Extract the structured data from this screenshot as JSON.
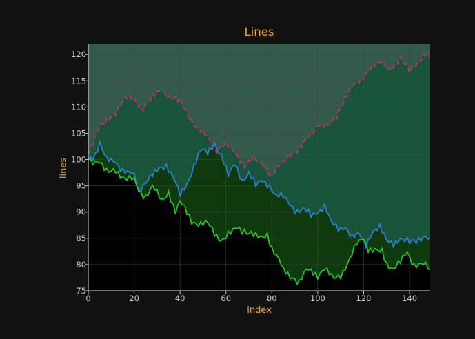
{
  "chart_data": {
    "type": "area",
    "title": "Lines",
    "xlabel": "Index",
    "ylabel": "lines",
    "xlim": [
      0,
      149
    ],
    "ylim": [
      75,
      122
    ],
    "xticks": [
      "0",
      "20",
      "40",
      "60",
      "80",
      "100",
      "120",
      "140"
    ],
    "yticks": [
      "75",
      "80",
      "85",
      "90",
      "95",
      "100",
      "105",
      "110",
      "115",
      "120"
    ],
    "grid": true,
    "legend": "none",
    "colors": {
      "background": "#111111",
      "plot_background": "#000000",
      "text": "#f0a030",
      "tick_text": "#cccccc",
      "grid": "#444444",
      "series_1": "#2dbf2d",
      "series_2": "#2e7fd0",
      "series_3": "#c62d72"
    },
    "series": [
      {
        "style": "solid",
        "color": "#2dbf2d",
        "anchors": [
          [
            0,
            100
          ],
          [
            5,
            99.5
          ],
          [
            8,
            97.5
          ],
          [
            12,
            98
          ],
          [
            15,
            96.5
          ],
          [
            20,
            96
          ],
          [
            22,
            94
          ],
          [
            25,
            93
          ],
          [
            28,
            95
          ],
          [
            32,
            92
          ],
          [
            35,
            94
          ],
          [
            38,
            90
          ],
          [
            40,
            92
          ],
          [
            43,
            90
          ],
          [
            45,
            88.5
          ],
          [
            48,
            87.5
          ],
          [
            52,
            88
          ],
          [
            55,
            86
          ],
          [
            58,
            84.5
          ],
          [
            62,
            86
          ],
          [
            65,
            87
          ],
          [
            68,
            86.5
          ],
          [
            72,
            85.5
          ],
          [
            75,
            85
          ],
          [
            78,
            86
          ],
          [
            80,
            83
          ],
          [
            83,
            81
          ],
          [
            85,
            79
          ],
          [
            88,
            78
          ],
          [
            92,
            76.5
          ],
          [
            95,
            79
          ],
          [
            97,
            79
          ],
          [
            100,
            78
          ],
          [
            103,
            79
          ],
          [
            107,
            77.5
          ],
          [
            110,
            78
          ],
          [
            113,
            80
          ],
          [
            117,
            84
          ],
          [
            120,
            85
          ],
          [
            122,
            83
          ],
          [
            125,
            82.5
          ],
          [
            128,
            82.5
          ],
          [
            130,
            80
          ],
          [
            133,
            79.5
          ],
          [
            136,
            80.5
          ],
          [
            139,
            82
          ],
          [
            142,
            80
          ],
          [
            145,
            80.5
          ],
          [
            149,
            79
          ]
        ]
      },
      {
        "style": "solid",
        "color": "#2e7fd0",
        "anchors": [
          [
            0,
            100
          ],
          [
            3,
            101
          ],
          [
            5,
            103
          ],
          [
            8,
            100
          ],
          [
            12,
            99.5
          ],
          [
            15,
            98
          ],
          [
            18,
            97.5
          ],
          [
            20,
            97
          ],
          [
            22,
            94
          ],
          [
            25,
            96
          ],
          [
            28,
            97
          ],
          [
            31,
            98
          ],
          [
            34,
            99
          ],
          [
            37,
            97
          ],
          [
            40,
            93
          ],
          [
            43,
            95
          ],
          [
            46,
            99
          ],
          [
            49,
            102
          ],
          [
            52,
            101
          ],
          [
            55,
            103
          ],
          [
            58,
            101
          ],
          [
            61,
            97
          ],
          [
            64,
            99
          ],
          [
            67,
            96
          ],
          [
            70,
            97.5
          ],
          [
            73,
            95
          ],
          [
            76,
            96
          ],
          [
            79,
            95
          ],
          [
            82,
            93
          ],
          [
            85,
            93
          ],
          [
            88,
            91.5
          ],
          [
            91,
            90
          ],
          [
            94,
            90.5
          ],
          [
            97,
            89.5
          ],
          [
            100,
            90
          ],
          [
            103,
            91
          ],
          [
            106,
            88
          ],
          [
            109,
            87
          ],
          [
            112,
            87
          ],
          [
            115,
            85
          ],
          [
            118,
            86
          ],
          [
            121,
            84
          ],
          [
            124,
            86
          ],
          [
            127,
            87
          ],
          [
            130,
            85
          ],
          [
            133,
            84
          ],
          [
            136,
            84.5
          ],
          [
            140,
            84.5
          ],
          [
            145,
            85
          ],
          [
            149,
            85
          ]
        ]
      },
      {
        "style": "dashed",
        "color": "#c62d72",
        "anchors": [
          [
            0,
            101
          ],
          [
            4,
            106
          ],
          [
            8,
            107
          ],
          [
            12,
            109
          ],
          [
            16,
            112
          ],
          [
            20,
            111
          ],
          [
            24,
            110
          ],
          [
            28,
            112
          ],
          [
            32,
            113
          ],
          [
            36,
            112
          ],
          [
            40,
            111
          ],
          [
            44,
            108
          ],
          [
            48,
            106
          ],
          [
            52,
            104
          ],
          [
            56,
            102
          ],
          [
            60,
            103
          ],
          [
            64,
            101
          ],
          [
            68,
            99
          ],
          [
            72,
            100
          ],
          [
            76,
            99
          ],
          [
            80,
            97
          ],
          [
            84,
            99
          ],
          [
            88,
            101
          ],
          [
            92,
            102
          ],
          [
            96,
            104
          ],
          [
            100,
            107
          ],
          [
            104,
            106
          ],
          [
            108,
            108
          ],
          [
            112,
            112
          ],
          [
            116,
            114
          ],
          [
            120,
            116
          ],
          [
            124,
            118
          ],
          [
            128,
            118
          ],
          [
            132,
            117.5
          ],
          [
            136,
            119
          ],
          [
            140,
            117
          ],
          [
            144,
            119
          ],
          [
            148,
            120
          ],
          [
            149,
            119
          ]
        ]
      }
    ]
  }
}
